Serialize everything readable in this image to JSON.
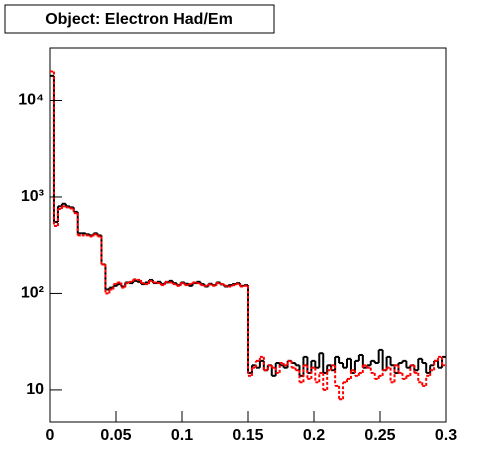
{
  "chart_data": {
    "type": "histogram",
    "title": "Object: Electron Had/Em",
    "log_y": true,
    "bins": [
      0,
      0.003,
      0.006,
      0.009,
      0.012,
      0.015,
      0.018,
      0.021,
      0.024,
      0.027,
      0.03,
      0.033,
      0.036,
      0.039,
      0.042,
      0.045,
      0.048,
      0.051,
      0.054,
      0.057,
      0.06,
      0.063,
      0.066,
      0.069,
      0.072,
      0.075,
      0.078,
      0.081,
      0.084,
      0.087,
      0.09,
      0.093,
      0.096,
      0.099,
      0.102,
      0.105,
      0.108,
      0.111,
      0.114,
      0.117,
      0.12,
      0.123,
      0.126,
      0.129,
      0.132,
      0.135,
      0.138,
      0.141,
      0.144,
      0.147,
      0.15,
      0.153,
      0.156,
      0.159,
      0.162,
      0.165,
      0.168,
      0.171,
      0.174,
      0.177,
      0.18,
      0.183,
      0.186,
      0.189,
      0.192,
      0.195,
      0.198,
      0.201,
      0.204,
      0.207,
      0.21,
      0.213,
      0.216,
      0.219,
      0.222,
      0.225,
      0.228,
      0.231,
      0.234,
      0.237,
      0.24,
      0.243,
      0.246,
      0.249,
      0.252,
      0.255,
      0.258,
      0.261,
      0.264,
      0.267,
      0.27,
      0.273,
      0.276,
      0.279,
      0.282,
      0.285,
      0.288,
      0.291,
      0.294,
      0.297,
      0.3
    ],
    "series": [
      {
        "color": "#000000",
        "dashed": false,
        "values": [
          18000,
          550,
          800,
          850,
          800,
          780,
          700,
          420,
          420,
          410,
          400,
          420,
          400,
          200,
          110,
          115,
          120,
          125,
          118,
          130,
          128,
          135,
          132,
          125,
          130,
          138,
          128,
          132,
          125,
          130,
          135,
          128,
          122,
          130,
          126,
          120,
          128,
          132,
          125,
          118,
          126,
          122,
          130,
          124,
          118,
          122,
          125,
          128,
          120,
          122,
          15,
          18,
          17,
          20,
          16,
          18,
          14,
          19,
          18,
          17,
          20,
          19,
          18,
          14,
          22,
          15,
          20,
          17,
          24,
          15,
          18,
          16,
          22,
          19,
          17,
          21,
          15,
          20,
          23,
          17,
          18,
          20,
          19,
          26,
          16,
          22,
          18,
          15,
          19,
          20,
          17,
          18,
          16,
          21,
          19,
          15,
          18,
          20,
          17,
          22
        ]
      },
      {
        "color": "#ff0000",
        "dashed": true,
        "values": [
          20000,
          500,
          750,
          800,
          780,
          760,
          680,
          400,
          400,
          400,
          390,
          410,
          390,
          200,
          100,
          110,
          125,
          130,
          115,
          128,
          132,
          140,
          138,
          128,
          125,
          135,
          130,
          128,
          122,
          132,
          130,
          125,
          120,
          128,
          122,
          125,
          130,
          128,
          122,
          120,
          124,
          120,
          128,
          125,
          120,
          118,
          122,
          126,
          118,
          120,
          14,
          17,
          20,
          22,
          16,
          18,
          17,
          15,
          19,
          18,
          20,
          17,
          16,
          12,
          18,
          13,
          17,
          12,
          15,
          10,
          16,
          18,
          11,
          8,
          12,
          13,
          16,
          14,
          15,
          18,
          17,
          15,
          13,
          14,
          16,
          17,
          12,
          18,
          15,
          13,
          14,
          18,
          15,
          12,
          11,
          14,
          16,
          20,
          22,
          18
        ]
      }
    ],
    "xlim": [
      0,
      0.3
    ],
    "xticks": [
      0,
      0.05,
      0.1,
      0.15,
      0.2,
      0.25,
      0.3
    ],
    "ylim": [
      4.65,
      35000
    ],
    "yticks": [
      {
        "value": 10,
        "label": "10"
      },
      {
        "value": 100,
        "label": "10²"
      },
      {
        "value": 1000,
        "label": "10³"
      },
      {
        "value": 10000,
        "label": "10⁴"
      }
    ]
  }
}
